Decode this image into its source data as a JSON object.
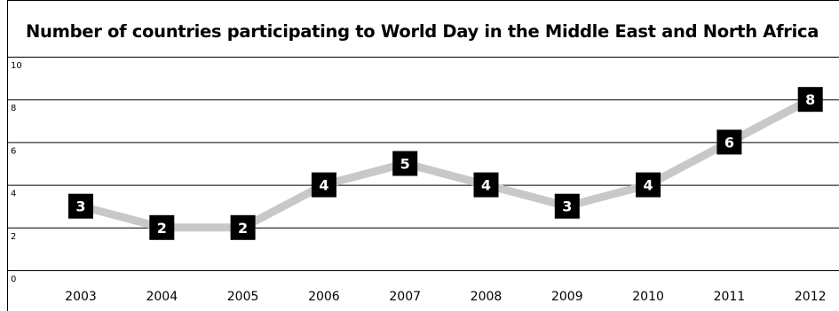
{
  "chart_data": {
    "type": "line",
    "title": "Number of countries participating to World Day in the Middle East and North Africa",
    "xlabel": "",
    "ylabel": "",
    "categories": [
      "2003",
      "2004",
      "2005",
      "2006",
      "2007",
      "2008",
      "2009",
      "2010",
      "2011",
      "2012"
    ],
    "series": [
      {
        "values": [
          3,
          2,
          2,
          4,
          5,
          4,
          3,
          4,
          6,
          8
        ]
      }
    ],
    "ylim": [
      0,
      10
    ],
    "yticks": [
      "0",
      "2",
      "4",
      "6",
      "8",
      "10"
    ],
    "grid": "horizontal",
    "legend": "none",
    "colors": {
      "line": "#c8c8c8",
      "label_bg": "#000000",
      "label_text": "#ffffff",
      "grid": "#000000"
    }
  }
}
